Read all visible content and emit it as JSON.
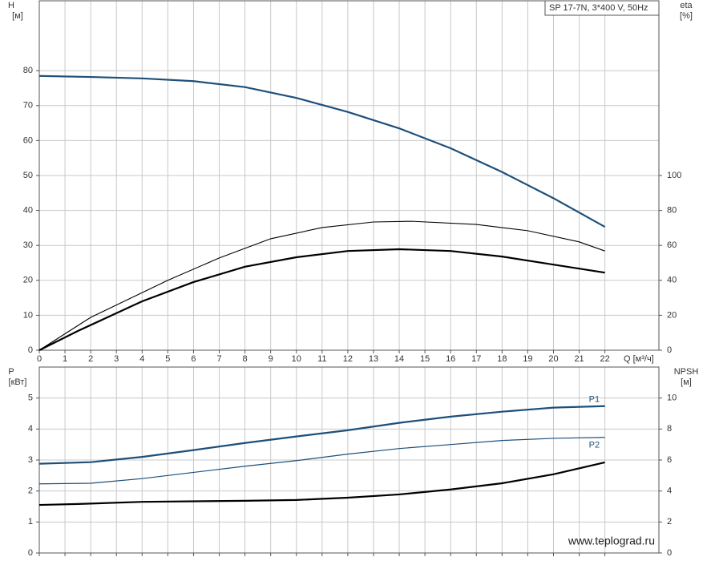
{
  "chart_data": [
    {
      "type": "line",
      "title": "SP 17-7N, 3*400 V, 50Hz",
      "ylabel": "H",
      "yunit": "[м]",
      "y2label": "eta",
      "y2unit": "[%]",
      "xlabel": "Q [м³/ч]",
      "xlim": [
        0,
        24.1
      ],
      "xticks": [
        0,
        1,
        2,
        3,
        4,
        5,
        6,
        7,
        8,
        9,
        10,
        11,
        12,
        13,
        14,
        15,
        16,
        17,
        18,
        19,
        20,
        21,
        22
      ],
      "ylim": [
        0,
        100
      ],
      "yticks": [
        0,
        10,
        20,
        30,
        40,
        50,
        60,
        70,
        80
      ],
      "y2lim": [
        0,
        200
      ],
      "y2ticks": [
        0,
        20,
        40,
        60,
        80,
        100
      ],
      "grid": true,
      "series": [
        {
          "color": "#1d4f7a",
          "width": 2.2,
          "x": [
            0,
            2,
            4,
            6,
            8,
            10,
            12,
            14,
            16,
            18,
            20,
            22
          ],
          "values": [
            78.5,
            78.2,
            77.8,
            77,
            75.3,
            72.2,
            68.2,
            63.5,
            57.8,
            51,
            43.5,
            35.3
          ]
        },
        {
          "color": "#000000",
          "width": 1.1,
          "axis": "y2",
          "x": [
            0,
            2,
            5,
            7,
            9,
            11,
            13,
            14.5,
            17,
            19,
            21,
            22
          ],
          "values": [
            0,
            18.8,
            40,
            52.8,
            63.8,
            70.2,
            73.4,
            73.8,
            72,
            68.4,
            62,
            56.8
          ]
        },
        {
          "color": "#000000",
          "width": 2.2,
          "axis": "y2",
          "x": [
            0,
            1.5,
            4,
            6,
            8,
            10,
            12,
            14,
            16,
            18,
            20,
            22
          ],
          "values": [
            0,
            11,
            28,
            39,
            47.8,
            53.2,
            56.8,
            57.8,
            56.8,
            53.6,
            49,
            44.4
          ]
        }
      ]
    },
    {
      "type": "line",
      "ylabel": "P",
      "yunit": "[кВт]",
      "y2label": "NPSH",
      "y2unit": "[м]",
      "watermark": "www.teplograd.ru",
      "xlim": [
        0,
        24.1
      ],
      "ylim": [
        0,
        6
      ],
      "yticks": [
        0,
        1,
        2,
        3,
        4,
        5
      ],
      "y2lim": [
        0,
        12
      ],
      "y2ticks": [
        0,
        2,
        4,
        6,
        8,
        10
      ],
      "grid": true,
      "series": [
        {
          "name": "P1",
          "color": "#1d4f7a",
          "width": 2.2,
          "x": [
            0,
            2,
            4,
            6,
            8,
            10,
            12,
            14,
            16,
            18,
            20,
            22
          ],
          "values": [
            2.88,
            2.93,
            3.1,
            3.32,
            3.55,
            3.76,
            3.96,
            4.2,
            4.4,
            4.56,
            4.69,
            4.74
          ]
        },
        {
          "name": "P2",
          "color": "#1d4f7a",
          "width": 1.2,
          "x": [
            0,
            2,
            4,
            6,
            8,
            10,
            12,
            14,
            16,
            18,
            20,
            22
          ],
          "values": [
            2.23,
            2.25,
            2.4,
            2.6,
            2.8,
            2.98,
            3.19,
            3.37,
            3.5,
            3.63,
            3.7,
            3.73
          ]
        },
        {
          "color": "#000000",
          "width": 2.2,
          "axis": "y2",
          "x": [
            0,
            1.5,
            4,
            8,
            10,
            12,
            14,
            16,
            18,
            20,
            22
          ],
          "values": [
            3.1,
            3.16,
            3.3,
            3.37,
            3.42,
            3.57,
            3.78,
            4.1,
            4.5,
            5.08,
            5.85
          ]
        }
      ]
    }
  ]
}
